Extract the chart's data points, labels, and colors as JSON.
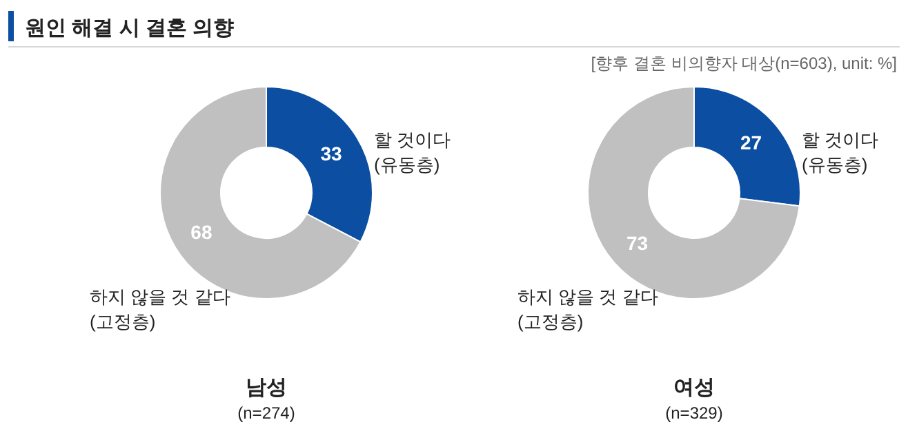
{
  "chart_data": [
    {
      "type": "donut",
      "title": "남성",
      "subtitle": "(n=274)",
      "annotations": [
        "원인 해결 시 결혼 의향",
        "[향후 결혼 비의향자 대상(n=603), unit: %]"
      ],
      "categories": [
        "할 것이다\n(유동층)",
        "하지 않을 것 같다\n(고정층)"
      ],
      "values": [
        33,
        68
      ],
      "colors": [
        "#0b4ea2",
        "#c0c0c0"
      ],
      "data_labels": true
    },
    {
      "type": "donut",
      "title": "여성",
      "subtitle": "(n=329)",
      "categories": [
        "할 것이다\n(유동층)",
        "하지 않을 것 같다\n(고정층)"
      ],
      "values": [
        27,
        73
      ],
      "colors": [
        "#0b4ea2",
        "#c0c0c0"
      ],
      "data_labels": true
    }
  ]
}
